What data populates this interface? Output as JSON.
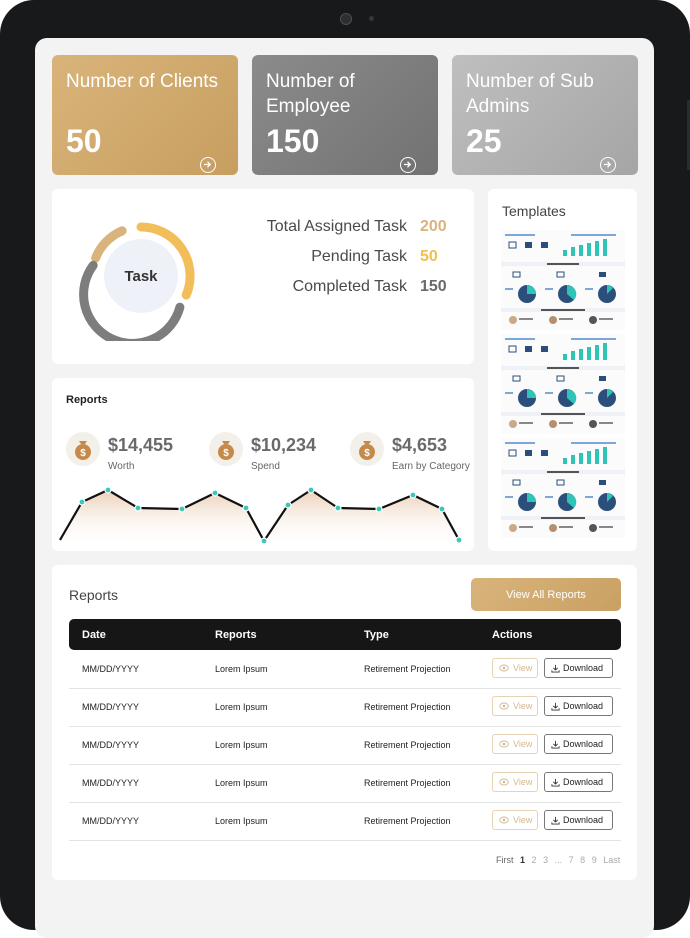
{
  "stats": [
    {
      "label": "Number of Clients",
      "value": "50"
    },
    {
      "label": "Number of Employee",
      "value": "150"
    },
    {
      "label": "Number of Sub Admins",
      "value": "25"
    }
  ],
  "task": {
    "center_label": "Task",
    "rows": [
      {
        "label": "Total Assigned Task",
        "value": "200",
        "color": "#d8b47c"
      },
      {
        "label": "Pending Task",
        "value": "50",
        "color": "#f2be50"
      },
      {
        "label": "Completed Task",
        "value": "150",
        "color": "#6a6a6a"
      }
    ]
  },
  "templates": {
    "title": "Templates"
  },
  "reports_widget": {
    "title": "Reports",
    "metrics": [
      {
        "amount": "$14,455",
        "label": "Worth"
      },
      {
        "amount": "$10,234",
        "label": "Spend"
      },
      {
        "amount": "$4,653",
        "label": "Earn by Category"
      }
    ]
  },
  "reports_table": {
    "title": "Reports",
    "view_all_label": "View All Reports",
    "columns": [
      "Date",
      "Reports",
      "Type",
      "Actions"
    ],
    "rows": [
      {
        "date": "MM/DD/YYYY",
        "report": "Lorem Ipsum",
        "type": "Retirement Projection"
      },
      {
        "date": "MM/DD/YYYY",
        "report": "Lorem Ipsum",
        "type": "Retirement Projection"
      },
      {
        "date": "MM/DD/YYYY",
        "report": "Lorem Ipsum",
        "type": "Retirement Projection"
      },
      {
        "date": "MM/DD/YYYY",
        "report": "Lorem Ipsum",
        "type": "Retirement Projection"
      },
      {
        "date": "MM/DD/YYYY",
        "report": "Lorem Ipsum",
        "type": "Retirement Projection"
      }
    ],
    "view_label": "View",
    "download_label": "Download",
    "pagination": [
      "First",
      "1",
      "2",
      "3",
      "...",
      "7",
      "8",
      "9",
      "Last"
    ],
    "current_page": "1"
  },
  "colors": {
    "gold": "#d3ad72",
    "dark_gray": "#7d7d7d",
    "light_gray": "#b0b0b0",
    "accent_teal": "#2ec4b6"
  }
}
